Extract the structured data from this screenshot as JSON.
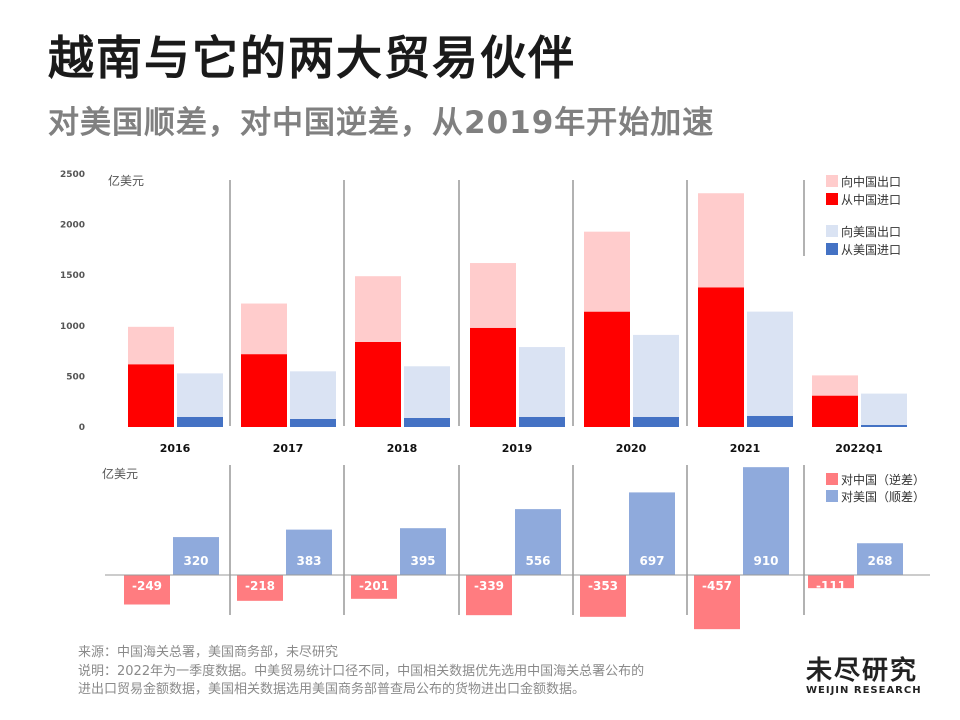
{
  "title": "越南与它的两大贸易伙伴",
  "subtitle": "对美国顺差，对中国逆差，从2019年开始加速",
  "chart_data": [
    {
      "type": "bar",
      "ylabel": "亿美元",
      "ylim": [
        0,
        2500
      ],
      "yticks": [
        0,
        500,
        1000,
        1500,
        2000,
        2500
      ],
      "categories": [
        "2016",
        "2017",
        "2018",
        "2019",
        "2020",
        "2021",
        "2022Q1"
      ],
      "legend_position": "top-right",
      "groups": [
        {
          "label": "中国",
          "stacked_series": [
            {
              "name": "从中国进口",
              "color": "#ff0000",
              "values": [
                620,
                720,
                840,
                980,
                1140,
                1380,
                310
              ]
            },
            {
              "name": "向中国出口",
              "color": "#ffcccc",
              "values": [
                370,
                500,
                650,
                640,
                790,
                930,
                200
              ]
            }
          ]
        },
        {
          "label": "美国",
          "stacked_series": [
            {
              "name": "从美国进口",
              "color": "#4472c4",
              "values": [
                100,
                80,
                90,
                100,
                100,
                110,
                20
              ]
            },
            {
              "name": "向美国出口",
              "color": "#dae3f3",
              "values": [
                430,
                470,
                510,
                690,
                810,
                1030,
                310
              ]
            }
          ]
        }
      ]
    },
    {
      "type": "bar",
      "ylabel": "亿美元",
      "categories": [
        "2016",
        "2017",
        "2018",
        "2019",
        "2020",
        "2021",
        "2022Q1"
      ],
      "legend_position": "top-right",
      "series": [
        {
          "name": "对中国（逆差）",
          "color": "#ff7c80",
          "values": [
            -249,
            -218,
            -201,
            -339,
            -353,
            -457,
            -111
          ]
        },
        {
          "name": "对美国（顺差）",
          "color": "#8faadc",
          "values": [
            320,
            383,
            395,
            556,
            697,
            910,
            268
          ]
        }
      ]
    }
  ],
  "footer": {
    "source": "来源：中国海关总署，美国商务部，未尽研究",
    "note_line1": "说明：2022年为一季度数据。中美贸易统计口径不同，中国相关数据优先选用中国海关总署公布的",
    "note_line2": "进出口贸易金额数据，美国相关数据选用美国商务部普查局公布的货物进出口金额数据。"
  },
  "logo": {
    "cn": "未尽研究",
    "en": "WEIJIN RESEARCH"
  }
}
